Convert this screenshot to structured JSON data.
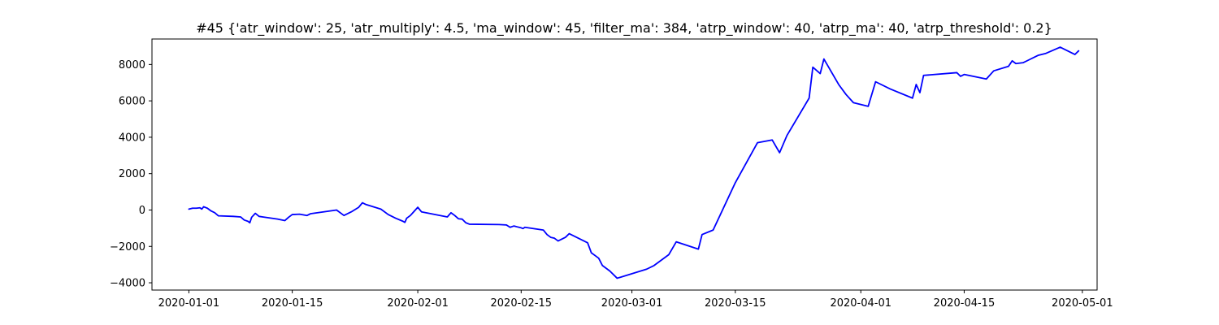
{
  "chart_data": {
    "type": "line",
    "title": "#45 {'atr_window': 25, 'atr_multiply': 4.5, 'ma_window': 45, 'filter_ma': 384, 'atrp_window': 40, 'atrp_ma': 40, 'atrp_threshold': 0.2}",
    "xlabel": "",
    "ylabel": "",
    "x_axis_type": "date",
    "xlim": [
      "2019-12-27",
      "2020-05-03"
    ],
    "ylim": [
      -4400,
      9400
    ],
    "x_ticks": [
      "2020-01-01",
      "2020-01-15",
      "2020-02-01",
      "2020-02-15",
      "2020-03-01",
      "2020-03-15",
      "2020-04-01",
      "2020-04-15",
      "2020-05-01"
    ],
    "y_ticks": [
      -4000,
      -2000,
      0,
      2000,
      4000,
      6000,
      8000
    ],
    "grid": false,
    "series": [
      {
        "color": "#0000ff",
        "points": [
          [
            "2020-01-01",
            50
          ],
          [
            "2020-01-01 12:00",
            100
          ],
          [
            "2020-01-02",
            100
          ],
          [
            "2020-01-02 12:00",
            120
          ],
          [
            "2020-01-02 18:00",
            50
          ],
          [
            "2020-01-03",
            180
          ],
          [
            "2020-01-03 12:00",
            100
          ],
          [
            "2020-01-04",
            -50
          ],
          [
            "2020-01-04 12:00",
            -150
          ],
          [
            "2020-01-05",
            -320
          ],
          [
            "2020-01-07",
            -350
          ],
          [
            "2020-01-08",
            -380
          ],
          [
            "2020-01-08 12:00",
            -550
          ],
          [
            "2020-01-09",
            -620
          ],
          [
            "2020-01-09 06:00",
            -700
          ],
          [
            "2020-01-09 12:00",
            -400
          ],
          [
            "2020-01-10",
            -180
          ],
          [
            "2020-01-10 12:00",
            -350
          ],
          [
            "2020-01-11",
            -380
          ],
          [
            "2020-01-13",
            -500
          ],
          [
            "2020-01-14",
            -580
          ],
          [
            "2020-01-14 12:00",
            -400
          ],
          [
            "2020-01-15",
            -250
          ],
          [
            "2020-01-16",
            -230
          ],
          [
            "2020-01-17",
            -300
          ],
          [
            "2020-01-17 12:00",
            -200
          ],
          [
            "2020-01-21",
            0
          ],
          [
            "2020-01-22",
            -300
          ],
          [
            "2020-01-23",
            -100
          ],
          [
            "2020-01-24",
            150
          ],
          [
            "2020-01-24 12:00",
            400
          ],
          [
            "2020-01-25",
            300
          ],
          [
            "2020-01-27",
            50
          ],
          [
            "2020-01-28",
            -250
          ],
          [
            "2020-01-29",
            -450
          ],
          [
            "2020-01-30",
            -620
          ],
          [
            "2020-01-30 06:00",
            -680
          ],
          [
            "2020-01-30 12:00",
            -450
          ],
          [
            "2020-01-31",
            -300
          ],
          [
            "2020-02-01",
            150
          ],
          [
            "2020-02-01 12:00",
            -100
          ],
          [
            "2020-02-05",
            -380
          ],
          [
            "2020-02-05 12:00",
            -150
          ],
          [
            "2020-02-06",
            -300
          ],
          [
            "2020-02-06 12:00",
            -480
          ],
          [
            "2020-02-07",
            -500
          ],
          [
            "2020-02-07 12:00",
            -700
          ],
          [
            "2020-02-08",
            -780
          ],
          [
            "2020-02-12",
            -800
          ],
          [
            "2020-02-13",
            -820
          ],
          [
            "2020-02-13 12:00",
            -950
          ],
          [
            "2020-02-14",
            -880
          ],
          [
            "2020-02-15",
            -980
          ],
          [
            "2020-02-15 06:00",
            -1020
          ],
          [
            "2020-02-15 12:00",
            -950
          ],
          [
            "2020-02-18",
            -1100
          ],
          [
            "2020-02-18 12:00",
            -1350
          ],
          [
            "2020-02-19",
            -1500
          ],
          [
            "2020-02-19 12:00",
            -1550
          ],
          [
            "2020-02-20",
            -1700
          ],
          [
            "2020-02-21",
            -1500
          ],
          [
            "2020-02-21 12:00",
            -1300
          ],
          [
            "2020-02-24",
            -1800
          ],
          [
            "2020-02-24 12:00",
            -2350
          ],
          [
            "2020-02-25",
            -2500
          ],
          [
            "2020-02-25 12:00",
            -2650
          ],
          [
            "2020-02-26",
            -3050
          ],
          [
            "2020-02-27",
            -3350
          ],
          [
            "2020-02-28",
            -3750
          ],
          [
            "2020-03-03",
            -3250
          ],
          [
            "2020-03-04",
            -3050
          ],
          [
            "2020-03-06",
            -2450
          ],
          [
            "2020-03-07",
            -1750
          ],
          [
            "2020-03-10",
            -2150
          ],
          [
            "2020-03-10 12:00",
            -1350
          ],
          [
            "2020-03-12",
            -1100
          ],
          [
            "2020-03-15",
            1500
          ],
          [
            "2020-03-18",
            3700
          ],
          [
            "2020-03-20",
            3850
          ],
          [
            "2020-03-21",
            3150
          ],
          [
            "2020-03-22",
            4100
          ],
          [
            "2020-03-25",
            6150
          ],
          [
            "2020-03-25 12:00",
            7850
          ],
          [
            "2020-03-26 12:00",
            7500
          ],
          [
            "2020-03-27",
            8300
          ],
          [
            "2020-03-28",
            7600
          ],
          [
            "2020-03-29",
            6900
          ],
          [
            "2020-03-30",
            6350
          ],
          [
            "2020-03-31",
            5900
          ],
          [
            "2020-04-02",
            5700
          ],
          [
            "2020-04-03",
            7050
          ],
          [
            "2020-04-05",
            6650
          ],
          [
            "2020-04-08",
            6150
          ],
          [
            "2020-04-08 12:00",
            6900
          ],
          [
            "2020-04-09",
            6450
          ],
          [
            "2020-04-09 12:00",
            7400
          ],
          [
            "2020-04-14",
            7550
          ],
          [
            "2020-04-14 12:00",
            7350
          ],
          [
            "2020-04-15",
            7450
          ],
          [
            "2020-04-18",
            7200
          ],
          [
            "2020-04-19",
            7650
          ],
          [
            "2020-04-21",
            7900
          ],
          [
            "2020-04-21 12:00",
            8200
          ],
          [
            "2020-04-22",
            8050
          ],
          [
            "2020-04-23",
            8100
          ],
          [
            "2020-04-23 12:00",
            8200
          ],
          [
            "2020-04-24",
            8300
          ],
          [
            "2020-04-25",
            8500
          ],
          [
            "2020-04-26",
            8600
          ],
          [
            "2020-04-28",
            8950
          ],
          [
            "2020-04-30",
            8550
          ],
          [
            "2020-04-30 12:00",
            8750
          ]
        ]
      }
    ]
  }
}
